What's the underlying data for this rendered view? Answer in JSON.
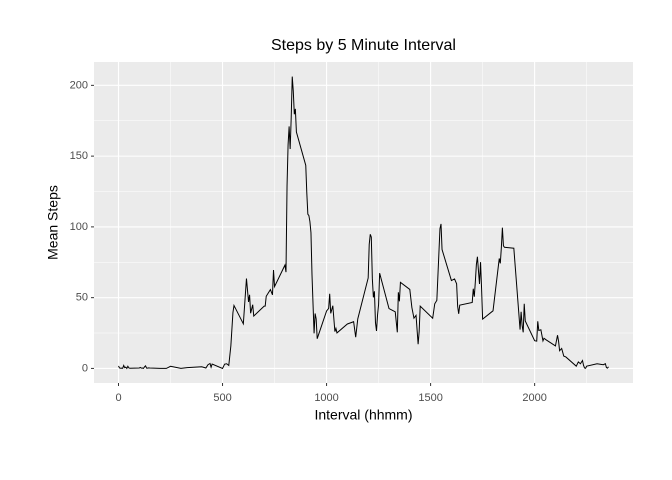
{
  "chart_data": {
    "type": "line",
    "title": "Steps by 5 Minute Interval",
    "x_label": "Interval (hhmm)",
    "y_label": "Mean Steps",
    "x": [
      0,
      5,
      10,
      15,
      20,
      25,
      30,
      35,
      40,
      45,
      50,
      55,
      100,
      105,
      110,
      115,
      120,
      125,
      130,
      135,
      140,
      145,
      150,
      200,
      230,
      250,
      300,
      330,
      400,
      420,
      430,
      440,
      445,
      450,
      500,
      510,
      520,
      530,
      540,
      550,
      555,
      600,
      615,
      625,
      630,
      635,
      645,
      650,
      700,
      705,
      710,
      730,
      740,
      745,
      750,
      800,
      805,
      810,
      815,
      820,
      825,
      830,
      835,
      840,
      845,
      850,
      855,
      900,
      905,
      910,
      915,
      920,
      925,
      930,
      935,
      940,
      945,
      950,
      955,
      1000,
      1010,
      1015,
      1020,
      1030,
      1040,
      1045,
      1050,
      1100,
      1130,
      1140,
      1150,
      1200,
      1205,
      1210,
      1215,
      1220,
      1225,
      1230,
      1235,
      1240,
      1245,
      1250,
      1255,
      1300,
      1330,
      1340,
      1345,
      1350,
      1355,
      1400,
      1410,
      1420,
      1430,
      1440,
      1445,
      1450,
      1510,
      1520,
      1530,
      1545,
      1550,
      1555,
      1600,
      1615,
      1625,
      1630,
      1635,
      1640,
      1700,
      1705,
      1710,
      1715,
      1720,
      1725,
      1730,
      1735,
      1740,
      1745,
      1750,
      1800,
      1830,
      1835,
      1840,
      1845,
      1850,
      1855,
      1900,
      1930,
      1935,
      1940,
      1945,
      1950,
      1955,
      2000,
      2010,
      2015,
      2020,
      2030,
      2040,
      2045,
      2055,
      2100,
      2110,
      2115,
      2120,
      2130,
      2140,
      2150,
      2200,
      2210,
      2220,
      2230,
      2235,
      2240,
      2245,
      2250,
      2300,
      2330,
      2340,
      2345,
      2350,
      2355
    ],
    "series": [
      {
        "name": "Mean Steps",
        "color": "#000000",
        "values": [
          1.7,
          0.3,
          0.1,
          0.2,
          0.1,
          2.1,
          0.5,
          0.9,
          0,
          1.5,
          0.3,
          0.1,
          0.3,
          0.7,
          0.2,
          0.3,
          0,
          1.1,
          1.8,
          0.2,
          0.2,
          0.4,
          0.3,
          0,
          0,
          1.5,
          0,
          0.6,
          1.2,
          0.3,
          2.6,
          3.5,
          0.8,
          3.1,
          0,
          3.0,
          3.3,
          2.1,
          16,
          39.5,
          44.5,
          31.5,
          63.5,
          47,
          52,
          39,
          45,
          37,
          44,
          44,
          51,
          55.7,
          52,
          69.5,
          57.8,
          73,
          68,
          129,
          158,
          171,
          155,
          177,
          206.2,
          195.9,
          179.6,
          183.4,
          167,
          143.5,
          124,
          109,
          108,
          103.7,
          95.9,
          66.2,
          45.2,
          24.8,
          38.8,
          35,
          21,
          40.6,
          42.4,
          52.7,
          38.9,
          44.3,
          26,
          28.3,
          25.1,
          31.4,
          33,
          22.1,
          35,
          63.9,
          87.6,
          94.8,
          92.8,
          63.4,
          50.2,
          54.5,
          32.4,
          26.5,
          37.7,
          45.1,
          67.3,
          42.3,
          40,
          25.5,
          53.8,
          47.4,
          60.8,
          55.8,
          43,
          35.5,
          37.5,
          17.1,
          26.1,
          44,
          35.5,
          45.7,
          48.1,
          98.7,
          102.1,
          84,
          62.1,
          63.2,
          59.8,
          43.9,
          38.6,
          44.7,
          46.6,
          56.3,
          50.7,
          61.2,
          73.4,
          78.9,
          68.9,
          59.7,
          75.1,
          56.5,
          34.8,
          40.7,
          77.7,
          74.2,
          85.3,
          99.5,
          86.6,
          85.6,
          84.9,
          27.4,
          40,
          30.2,
          25.5,
          45.7,
          33.5,
          19.6,
          19.3,
          33.3,
          26.8,
          27.3,
          19.5,
          21.3,
          20.2,
          15.9,
          23.5,
          19.2,
          12.5,
          14.1,
          8.7,
          8.1,
          1.6,
          4.6,
          3.3,
          5.6,
          2.2,
          0.3,
          0.1,
          1.6,
          3.3,
          2.6,
          3.3,
          0.6,
          0.2,
          1.1
        ]
      }
    ],
    "xlim": [
      -117.75,
      2472.75
    ],
    "ylim": [
      -10.3,
      216.5
    ],
    "xticks": [
      0,
      500,
      1000,
      1500,
      2000
    ],
    "yticks": [
      0,
      50,
      100,
      150,
      200
    ],
    "grid": true
  }
}
